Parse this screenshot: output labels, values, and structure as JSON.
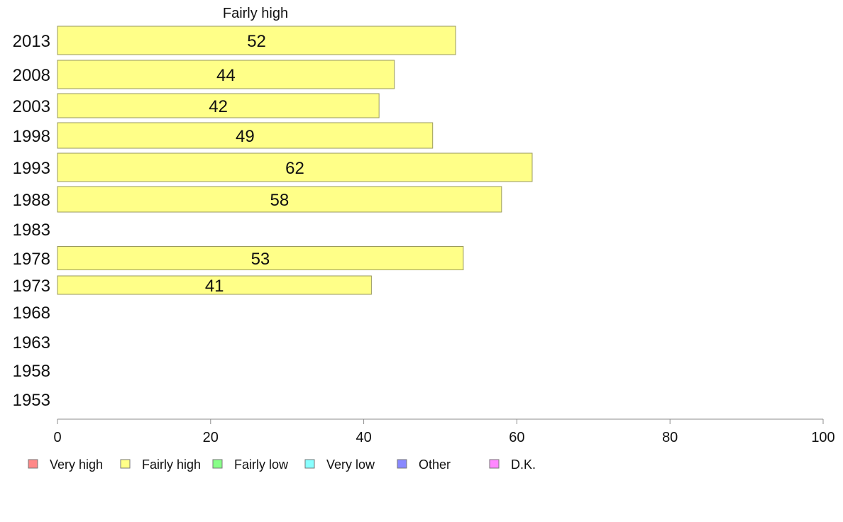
{
  "chart_data": {
    "type": "bar",
    "orientation": "horizontal",
    "title": "Fairly high",
    "categories": [
      "2013",
      "2008",
      "2003",
      "1998",
      "1993",
      "1988",
      "1983",
      "1978",
      "1973",
      "1968",
      "1963",
      "1958",
      "1953"
    ],
    "series": [
      {
        "name": "Fairly high",
        "color": "#ffff88",
        "values": [
          52,
          44,
          42,
          49,
          62,
          58,
          null,
          53,
          41,
          null,
          null,
          null,
          null
        ]
      }
    ],
    "xlim": [
      0,
      100
    ],
    "xticks": [
      "0",
      "20",
      "40",
      "60",
      "80",
      "100"
    ],
    "xlabel": "",
    "ylabel": "",
    "grid": false,
    "legend": {
      "placement": "bottom",
      "items": [
        {
          "label": "Very high",
          "color": "#ff8888"
        },
        {
          "label": "Fairly high",
          "color": "#ffff88"
        },
        {
          "label": "Fairly low",
          "color": "#88ff88"
        },
        {
          "label": "Very low",
          "color": "#88ffff"
        },
        {
          "label": "Other",
          "color": "#8888ff"
        },
        {
          "label": "D.K.",
          "color": "#ff88ff"
        }
      ]
    }
  }
}
